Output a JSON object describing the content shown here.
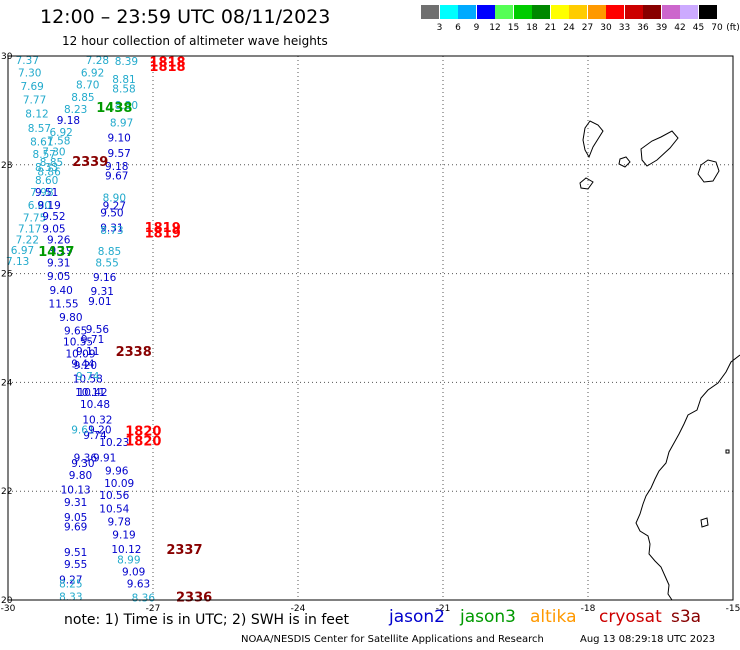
{
  "title": "12:00 – 23:59 UTC 08/11/2023",
  "subtitle": "12 hour collection of altimeter wave heights",
  "note": "note:  1) Time is in UTC; 2) SWH is in feet",
  "footer": {
    "credit": "NOAA/NESDIS Center for Satellite Applications and Research",
    "timestamp": "Aug 13 08:29:18 UTC 2023"
  },
  "satellites": [
    {
      "name": "jason2",
      "color": "#0000cc"
    },
    {
      "name": "jason3",
      "color": "#009900"
    },
    {
      "name": "altika",
      "color": "#ff9900"
    },
    {
      "name": "cryosat",
      "color": "#cc0000"
    },
    {
      "name": "s3a",
      "color": "#880000"
    }
  ],
  "legend": {
    "ticks": [
      "3",
      "6",
      "9",
      "12",
      "15",
      "18",
      "21",
      "24",
      "27",
      "30",
      "33",
      "36",
      "39",
      "42",
      "45",
      "70"
    ],
    "unit": "(ft)",
    "colors": [
      "#707070",
      "#00ffff",
      "#00aaff",
      "#0000ff",
      "#55ff55",
      "#00cc00",
      "#008800",
      "#ffff00",
      "#ffcc00",
      "#ff9900",
      "#ff0000",
      "#cc0000",
      "#880000",
      "#cc66cc",
      "#ccaaff",
      "#000000"
    ]
  },
  "axes": {
    "x_ticks": [
      "-30",
      "-27",
      "-24",
      "-21",
      "-18",
      "-15"
    ],
    "y_ticks": [
      "30",
      "28",
      "26",
      "24",
      "22",
      "20"
    ],
    "lon_range": [
      -30,
      -15
    ],
    "lat_range": [
      20,
      30
    ]
  },
  "observations": [
    {
      "v": "7.37",
      "lon": -29.6,
      "lat": 29.93,
      "c": "#22aacc"
    },
    {
      "v": "7.30",
      "lon": -29.55,
      "lat": 29.7,
      "c": "#22aacc"
    },
    {
      "v": "7.69",
      "lon": -29.5,
      "lat": 29.45,
      "c": "#22aacc"
    },
    {
      "v": "7.77",
      "lon": -29.45,
      "lat": 29.2,
      "c": "#22aacc"
    },
    {
      "v": "8.12",
      "lon": -29.4,
      "lat": 28.94,
      "c": "#22aacc"
    },
    {
      "v": "8.57",
      "lon": -29.35,
      "lat": 28.68,
      "c": "#22aacc"
    },
    {
      "v": "8.61",
      "lon": -29.3,
      "lat": 28.43,
      "c": "#22aacc"
    },
    {
      "v": "8.57",
      "lon": -29.25,
      "lat": 28.2,
      "c": "#22aacc"
    },
    {
      "v": "8.33",
      "lon": -29.2,
      "lat": 27.96,
      "c": "#22aacc"
    },
    {
      "v": "7.98",
      "lon": -29.3,
      "lat": 27.5,
      "c": "#22aacc"
    },
    {
      "v": "6.80",
      "lon": -29.35,
      "lat": 27.26,
      "c": "#22aacc"
    },
    {
      "v": "7.75",
      "lon": -29.45,
      "lat": 27.03,
      "c": "#22aacc"
    },
    {
      "v": "7.17",
      "lon": -29.55,
      "lat": 26.83,
      "c": "#22aacc"
    },
    {
      "v": "7.22",
      "lon": -29.6,
      "lat": 26.63,
      "c": "#22aacc"
    },
    {
      "v": "6.97",
      "lon": -29.7,
      "lat": 26.43,
      "c": "#22aacc"
    },
    {
      "v": "7.13",
      "lon": -29.8,
      "lat": 26.23,
      "c": "#22aacc"
    },
    {
      "v": "7.28",
      "lon": -28.15,
      "lat": 29.93,
      "c": "#22aacc"
    },
    {
      "v": "6.92",
      "lon": -28.25,
      "lat": 29.7,
      "c": "#22aacc"
    },
    {
      "v": "8.70",
      "lon": -28.35,
      "lat": 29.48,
      "c": "#22aacc"
    },
    {
      "v": "8.85",
      "lon": -28.45,
      "lat": 29.25,
      "c": "#22aacc"
    },
    {
      "v": "8.23",
      "lon": -28.6,
      "lat": 29.03,
      "c": "#22aacc"
    },
    {
      "v": "9.18",
      "lon": -28.75,
      "lat": 28.82,
      "c": "#0000cc"
    },
    {
      "v": "6.92",
      "lon": -28.9,
      "lat": 28.6,
      "c": "#22aacc"
    },
    {
      "v": "7.58",
      "lon": -28.95,
      "lat": 28.45,
      "c": "#22aacc"
    },
    {
      "v": "7.30",
      "lon": -29.05,
      "lat": 28.24,
      "c": "#22aacc"
    },
    {
      "v": "8.85",
      "lon": -29.1,
      "lat": 28.05,
      "c": "#22aacc"
    },
    {
      "v": "8.86",
      "lon": -29.15,
      "lat": 27.88,
      "c": "#22aacc"
    },
    {
      "v": "8.60",
      "lon": -29.2,
      "lat": 27.72,
      "c": "#22aacc"
    },
    {
      "v": "9.51",
      "lon": -29.2,
      "lat": 27.5,
      "c": "#0000cc"
    },
    {
      "v": "9.19",
      "lon": -29.15,
      "lat": 27.26,
      "c": "#0000cc"
    },
    {
      "v": "9.52",
      "lon": -29.05,
      "lat": 27.06,
      "c": "#0000cc"
    },
    {
      "v": "9.05",
      "lon": -29.05,
      "lat": 26.83,
      "c": "#0000cc"
    },
    {
      "v": "9.26",
      "lon": -28.95,
      "lat": 26.63,
      "c": "#0000cc"
    },
    {
      "v": "9.19",
      "lon": -28.9,
      "lat": 26.43,
      "c": "#0000cc"
    },
    {
      "v": "9.31",
      "lon": -28.95,
      "lat": 26.2,
      "c": "#0000cc"
    },
    {
      "v": "9.05",
      "lon": -28.95,
      "lat": 25.96,
      "c": "#0000cc"
    },
    {
      "v": "9.40",
      "lon": -28.9,
      "lat": 25.7,
      "c": "#0000cc"
    },
    {
      "v": "11.55",
      "lon": -28.85,
      "lat": 25.45,
      "c": "#0000cc"
    },
    {
      "v": "9.80",
      "lon": -28.7,
      "lat": 25.2,
      "c": "#0000cc"
    },
    {
      "v": "9.65",
      "lon": -28.6,
      "lat": 24.95,
      "c": "#0000cc"
    },
    {
      "v": "10.55",
      "lon": -28.55,
      "lat": 24.75,
      "c": "#0000cc"
    },
    {
      "v": "10.09",
      "lon": -28.5,
      "lat": 24.53,
      "c": "#0000cc"
    },
    {
      "v": "9.20",
      "lon": -28.4,
      "lat": 24.32,
      "c": "#0000cc"
    },
    {
      "v": "10.58",
      "lon": -28.35,
      "lat": 24.07,
      "c": "#0000cc"
    },
    {
      "v": "10.11",
      "lon": -28.3,
      "lat": 23.82,
      "c": "#0000cc"
    },
    {
      "v": "10.48",
      "lon": -28.2,
      "lat": 23.6,
      "c": "#0000cc"
    },
    {
      "v": "10.32",
      "lon": -28.15,
      "lat": 23.32,
      "c": "#0000cc"
    },
    {
      "v": "9.74",
      "lon": -28.2,
      "lat": 23.03,
      "c": "#0000cc"
    },
    {
      "v": "9.36",
      "lon": -28.4,
      "lat": 22.62,
      "c": "#0000cc"
    },
    {
      "v": "9.30",
      "lon": -28.45,
      "lat": 22.52,
      "c": "#0000cc"
    },
    {
      "v": "9.80",
      "lon": -28.5,
      "lat": 22.3,
      "c": "#0000cc"
    },
    {
      "v": "10.13",
      "lon": -28.6,
      "lat": 22.03,
      "c": "#0000cc"
    },
    {
      "v": "9.31",
      "lon": -28.6,
      "lat": 21.8,
      "c": "#0000cc"
    },
    {
      "v": "9.05",
      "lon": -28.6,
      "lat": 21.53,
      "c": "#0000cc"
    },
    {
      "v": "9.69",
      "lon": -28.6,
      "lat": 21.35,
      "c": "#0000cc"
    },
    {
      "v": "9.51",
      "lon": -28.6,
      "lat": 20.88,
      "c": "#0000cc"
    },
    {
      "v": "9.55",
      "lon": -28.6,
      "lat": 20.66,
      "c": "#0000cc"
    },
    {
      "v": "9.27",
      "lon": -28.7,
      "lat": 20.38,
      "c": "#0000cc"
    },
    {
      "v": "8.25",
      "lon": -28.7,
      "lat": 20.3,
      "c": "#22aacc"
    },
    {
      "v": "8.33",
      "lon": -28.7,
      "lat": 20.06,
      "c": "#22aacc"
    },
    {
      "v": "8.39",
      "lon": -27.55,
      "lat": 29.91,
      "c": "#22aacc"
    },
    {
      "v": "8.81",
      "lon": -27.6,
      "lat": 29.58,
      "c": "#22aacc"
    },
    {
      "v": "8.58",
      "lon": -27.6,
      "lat": 29.4,
      "c": "#22aacc"
    },
    {
      "v": "8.30",
      "lon": -27.55,
      "lat": 29.1,
      "c": "#22aacc"
    },
    {
      "v": "8.97",
      "lon": -27.65,
      "lat": 28.78,
      "c": "#22aacc"
    },
    {
      "v": "9.10",
      "lon": -27.7,
      "lat": 28.5,
      "c": "#0000cc"
    },
    {
      "v": "9.57",
      "lon": -27.7,
      "lat": 28.22,
      "c": "#0000cc"
    },
    {
      "v": "9.18",
      "lon": -27.75,
      "lat": 27.98,
      "c": "#0000cc"
    },
    {
      "v": "9.67",
      "lon": -27.75,
      "lat": 27.8,
      "c": "#0000cc"
    },
    {
      "v": "8.90",
      "lon": -27.8,
      "lat": 27.4,
      "c": "#22aacc"
    },
    {
      "v": "9.27",
      "lon": -27.8,
      "lat": 27.25,
      "c": "#0000cc"
    },
    {
      "v": "9.50",
      "lon": -27.85,
      "lat": 27.12,
      "c": "#0000cc"
    },
    {
      "v": "9.31",
      "lon": -27.85,
      "lat": 26.85,
      "c": "#0000cc"
    },
    {
      "v": "8.73",
      "lon": -27.85,
      "lat": 26.8,
      "c": "#22aacc"
    },
    {
      "v": "8.85",
      "lon": -27.9,
      "lat": 26.42,
      "c": "#22aacc"
    },
    {
      "v": "8.55",
      "lon": -27.95,
      "lat": 26.2,
      "c": "#22aacc"
    },
    {
      "v": "9.16",
      "lon": -28.0,
      "lat": 25.94,
      "c": "#0000cc"
    },
    {
      "v": "9.31",
      "lon": -28.05,
      "lat": 25.68,
      "c": "#0000cc"
    },
    {
      "v": "9.01",
      "lon": -28.1,
      "lat": 25.5,
      "c": "#0000cc"
    },
    {
      "v": "9.56",
      "lon": -28.15,
      "lat": 24.98,
      "c": "#0000cc"
    },
    {
      "v": "9.71",
      "lon": -28.25,
      "lat": 24.8,
      "c": "#0000cc"
    },
    {
      "v": "9.11",
      "lon": -28.35,
      "lat": 24.58,
      "c": "#0000cc"
    },
    {
      "v": "9.44",
      "lon": -28.45,
      "lat": 24.35,
      "c": "#0000cc"
    },
    {
      "v": "9.74",
      "lon": -28.35,
      "lat": 24.12,
      "c": "#22aacc"
    },
    {
      "v": "10.42",
      "lon": -28.25,
      "lat": 23.82,
      "c": "#0000cc"
    },
    {
      "v": "9.61",
      "lon": -28.45,
      "lat": 23.13,
      "c": "#22aacc"
    },
    {
      "v": "9.20",
      "lon": -28.1,
      "lat": 23.13,
      "c": "#0000cc"
    },
    {
      "v": "10.23",
      "lon": -27.8,
      "lat": 22.9,
      "c": "#0000cc"
    },
    {
      "v": "9.91",
      "lon": -28.0,
      "lat": 22.62,
      "c": "#0000cc"
    },
    {
      "v": "9.96",
      "lon": -27.75,
      "lat": 22.38,
      "c": "#0000cc"
    },
    {
      "v": "10.09",
      "lon": -27.7,
      "lat": 22.15,
      "c": "#0000cc"
    },
    {
      "v": "10.56",
      "lon": -27.8,
      "lat": 21.93,
      "c": "#0000cc"
    },
    {
      "v": "10.54",
      "lon": -27.8,
      "lat": 21.68,
      "c": "#0000cc"
    },
    {
      "v": "9.78",
      "lon": -27.7,
      "lat": 21.44,
      "c": "#0000cc"
    },
    {
      "v": "9.19",
      "lon": -27.6,
      "lat": 21.2,
      "c": "#0000cc"
    },
    {
      "v": "10.12",
      "lon": -27.55,
      "lat": 20.94,
      "c": "#0000cc"
    },
    {
      "v": "8.99",
      "lon": -27.5,
      "lat": 20.74,
      "c": "#22aacc"
    },
    {
      "v": "9.09",
      "lon": -27.4,
      "lat": 20.52,
      "c": "#0000cc"
    },
    {
      "v": "9.63",
      "lon": -27.3,
      "lat": 20.3,
      "c": "#0000cc"
    },
    {
      "v": "8.36",
      "lon": -27.2,
      "lat": 20.05,
      "c": "#22aacc"
    }
  ],
  "time_labels": [
    {
      "t": "1818",
      "lon": -26.7,
      "lat": 29.9,
      "c": "#ff0000"
    },
    {
      "t": "1818",
      "lon": -26.7,
      "lat": 29.82,
      "c": "#ff0000"
    },
    {
      "t": "1438",
      "lon": -27.8,
      "lat": 29.06,
      "c": "#009900"
    },
    {
      "t": "2339",
      "lon": -28.3,
      "lat": 28.07,
      "c": "#880000"
    },
    {
      "t": "1819",
      "lon": -26.8,
      "lat": 26.86,
      "c": "#ff0000"
    },
    {
      "t": "1819",
      "lon": -26.8,
      "lat": 26.76,
      "c": "#ff0000"
    },
    {
      "t": "1437",
      "lon": -29.0,
      "lat": 26.42,
      "c": "#009900"
    },
    {
      "t": "2338",
      "lon": -27.4,
      "lat": 24.58,
      "c": "#880000"
    },
    {
      "t": "1820",
      "lon": -27.2,
      "lat": 23.12,
      "c": "#ff0000"
    },
    {
      "t": "1820",
      "lon": -27.2,
      "lat": 22.93,
      "c": "#ff0000"
    },
    {
      "t": "2337",
      "lon": -26.35,
      "lat": 20.94,
      "c": "#880000"
    },
    {
      "t": "2336",
      "lon": -26.15,
      "lat": 20.06,
      "c": "#880000"
    }
  ]
}
